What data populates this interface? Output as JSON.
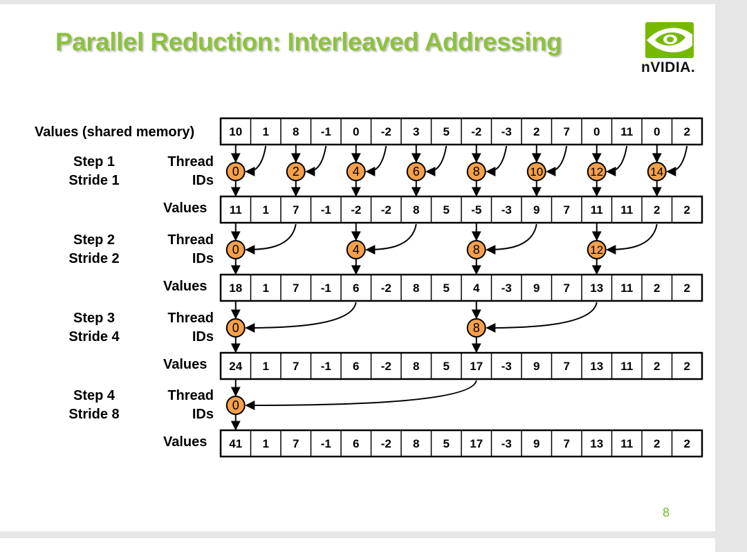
{
  "title": "Parallel Reduction: Interleaved Addressing",
  "brand": "nVIDIA.",
  "page_number": "8",
  "header_label": "Values (shared memory)",
  "initial_values": [
    "10",
    "1",
    "8",
    "-1",
    "0",
    "-2",
    "3",
    "5",
    "-2",
    "-3",
    "2",
    "7",
    "0",
    "11",
    "0",
    "2"
  ],
  "steps": [
    {
      "label": "Step 1",
      "stride": "Stride 1",
      "thread_label": "Thread",
      "ids_label": "IDs",
      "threads": [
        "0",
        "2",
        "4",
        "6",
        "8",
        "10",
        "12",
        "14"
      ],
      "thread_positions": [
        0,
        2,
        4,
        6,
        8,
        10,
        12,
        14
      ],
      "source_positions": [
        1,
        3,
        5,
        7,
        9,
        11,
        13,
        15
      ],
      "values_label": "Values",
      "values": [
        "11",
        "1",
        "7",
        "-1",
        "-2",
        "-2",
        "8",
        "5",
        "-5",
        "-3",
        "9",
        "7",
        "11",
        "11",
        "2",
        "2"
      ]
    },
    {
      "label": "Step 2",
      "stride": "Stride 2",
      "thread_label": "Thread",
      "ids_label": "IDs",
      "threads": [
        "0",
        "4",
        "8",
        "12"
      ],
      "thread_positions": [
        0,
        4,
        8,
        12
      ],
      "source_positions": [
        2,
        6,
        10,
        14
      ],
      "values_label": "Values",
      "values": [
        "18",
        "1",
        "7",
        "-1",
        "6",
        "-2",
        "8",
        "5",
        "4",
        "-3",
        "9",
        "7",
        "13",
        "11",
        "2",
        "2"
      ]
    },
    {
      "label": "Step 3",
      "stride": "Stride 4",
      "thread_label": "Thread",
      "ids_label": "IDs",
      "threads": [
        "0",
        "8"
      ],
      "thread_positions": [
        0,
        8
      ],
      "source_positions": [
        4,
        12
      ],
      "values_label": "Values",
      "values": [
        "24",
        "1",
        "7",
        "-1",
        "6",
        "-2",
        "8",
        "5",
        "17",
        "-3",
        "9",
        "7",
        "13",
        "11",
        "2",
        "2"
      ]
    },
    {
      "label": "Step 4",
      "stride": "Stride 8",
      "thread_label": "Thread",
      "ids_label": "IDs",
      "threads": [
        "0"
      ],
      "thread_positions": [
        0
      ],
      "source_positions": [
        8
      ],
      "values_label": "Values",
      "values": [
        "41",
        "1",
        "7",
        "-1",
        "6",
        "-2",
        "8",
        "5",
        "17",
        "-3",
        "9",
        "7",
        "13",
        "11",
        "2",
        "2"
      ]
    }
  ],
  "colors": {
    "title": "#8dc13f",
    "thread_fill": "#f5a04a",
    "page_number": "#77b82a"
  }
}
